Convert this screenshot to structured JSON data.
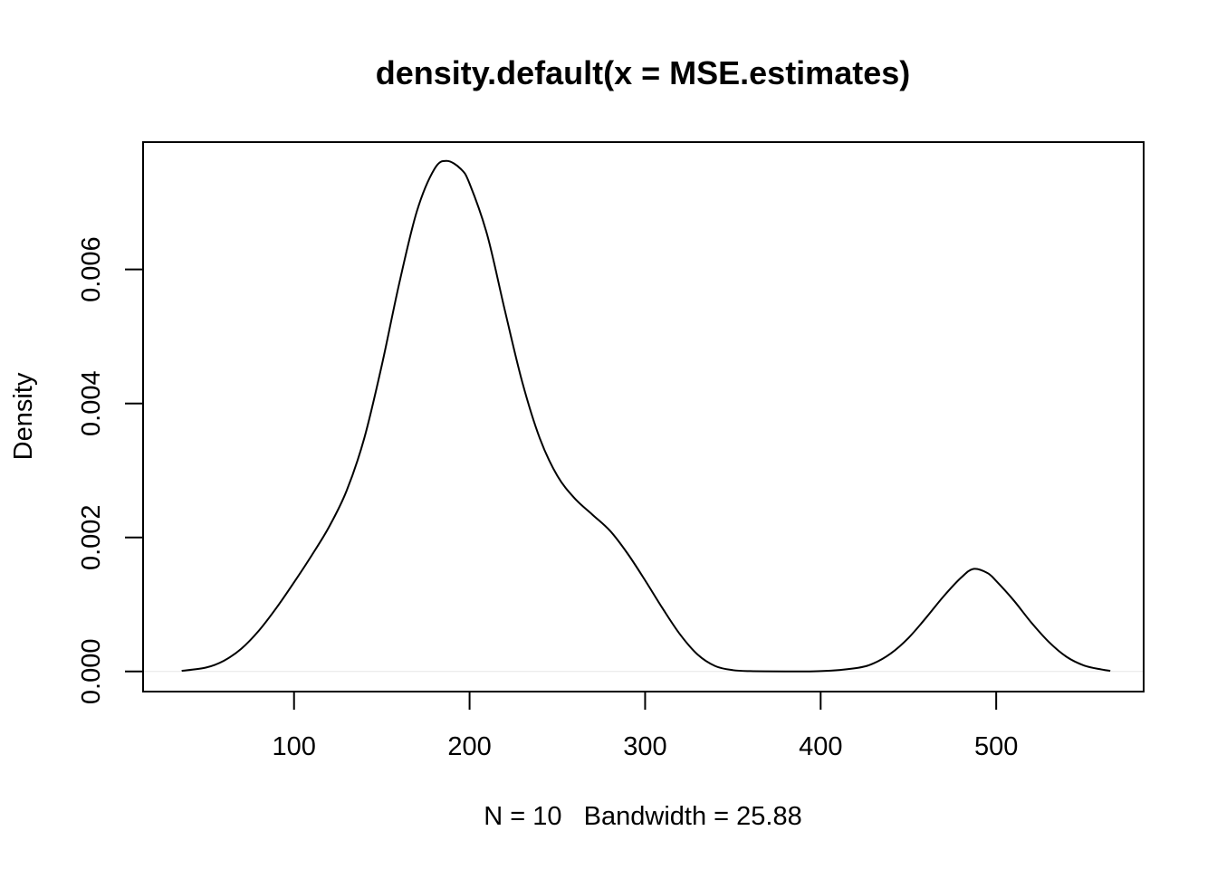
{
  "chart_data": {
    "type": "line",
    "title": "density.default(x = MSE.estimates)",
    "xlabel": "N = 10   Bandwidth = 25.88",
    "ylabel": "Density",
    "xlim": [
      14,
      584
    ],
    "ylim": [
      -0.0003,
      0.0079
    ],
    "x_ticks": [
      100,
      200,
      300,
      400,
      500
    ],
    "x_tick_labels": [
      "100",
      "200",
      "300",
      "400",
      "500"
    ],
    "y_ticks": [
      0,
      0.002,
      0.004,
      0.006
    ],
    "y_tick_labels": [
      "0.000",
      "0.002",
      "0.004",
      "0.006"
    ],
    "grid": false,
    "legend": "none",
    "baseline": 0,
    "colors": {
      "line": "#000000",
      "baseline": "#e6e6e6",
      "frame": "#000000"
    },
    "series": [
      {
        "x": [
          36,
          50,
          60,
          70,
          80,
          90,
          100,
          110,
          120,
          130,
          140,
          150,
          160,
          170,
          180,
          187,
          195,
          200,
          210,
          220,
          230,
          240,
          250,
          260,
          270,
          280,
          290,
          300,
          310,
          320,
          330,
          340,
          350,
          360,
          380,
          400,
          420,
          430,
          440,
          450,
          460,
          470,
          480,
          487,
          495,
          500,
          510,
          520,
          530,
          540,
          550,
          560,
          565
        ],
        "y": [
          1e-05,
          6e-05,
          0.00016,
          0.00034,
          0.00061,
          0.00095,
          0.00133,
          0.00173,
          0.00216,
          0.0027,
          0.00348,
          0.00457,
          0.0058,
          0.00687,
          0.0075,
          0.00762,
          0.0075,
          0.00728,
          0.00652,
          0.0054,
          0.00432,
          0.00348,
          0.00292,
          0.00258,
          0.00234,
          0.0021,
          0.00176,
          0.00136,
          0.00094,
          0.00055,
          0.00025,
          8e-05,
          2e-05,
          5e-06,
          1e-06,
          5e-06,
          5e-05,
          0.00012,
          0.00027,
          0.0005,
          0.0008,
          0.00112,
          0.0014,
          0.00153,
          0.00147,
          0.00135,
          0.00106,
          0.00073,
          0.00044,
          0.00022,
          9e-05,
          3e-05,
          1e-05
        ]
      }
    ]
  }
}
